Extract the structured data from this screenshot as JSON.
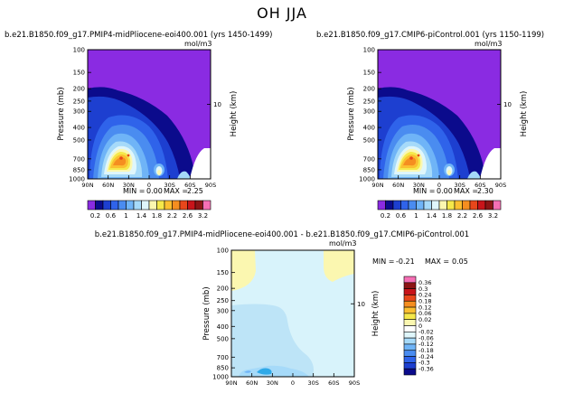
{
  "title": "OH JJA",
  "colors": {
    "purple": "#8a2be2",
    "navy": "#0b0b8c",
    "blue1": "#1d3fd0",
    "blue2": "#2f63ea",
    "blue3": "#4a8cf0",
    "blue4": "#6fb4f7",
    "blue5": "#a6daf9",
    "pale": "#dff6fb",
    "lightyellow": "#fbf7b0",
    "yellow": "#f5e84a",
    "orange1": "#fbbf30",
    "orange2": "#f58e20",
    "red1": "#e8471b",
    "red2": "#c8141a",
    "darkred": "#8c1515",
    "pink": "#f66fb5",
    "diff_lightblue": "#d8f3fb",
    "diff_blue": "#bde4f7",
    "diff_cyan": "#2fa9e8"
  },
  "chart_data": [
    {
      "type": "heatmap",
      "panel": "upper-left",
      "title": "b.e21.B1850.f09_g17.PMIP4-midPliocene-eoi400.001 (yrs 1450-1499)",
      "units": "mol/m3",
      "xlabel": "",
      "ylabel": "Pressure (mb)",
      "ylabel_right": "Height (km)",
      "x_ticks": [
        "90N",
        "60N",
        "30N",
        "0",
        "30S",
        "60S",
        "90S"
      ],
      "y_ticks": [
        "100",
        "150",
        "200",
        "250",
        "300",
        "400",
        "500",
        "700",
        "850",
        "1000"
      ],
      "y_right_ticks": [
        "10"
      ],
      "stats": {
        "min_label": "MIN =",
        "min": "0.00",
        "max_label": "MAX =",
        "max": "2.25"
      }
    },
    {
      "type": "heatmap",
      "panel": "upper-right",
      "title": "b.e21.B1850.f09_g17.CMIP6-piControl.001 (yrs 1150-1199)",
      "units": "mol/m3",
      "xlabel": "",
      "ylabel": "Pressure (mb)",
      "ylabel_right": "Height (km)",
      "x_ticks": [
        "90N",
        "60N",
        "30N",
        "0",
        "30S",
        "60S",
        "90S"
      ],
      "y_ticks": [
        "100",
        "150",
        "200",
        "250",
        "300",
        "400",
        "500",
        "700",
        "850",
        "1000"
      ],
      "y_right_ticks": [
        "10"
      ],
      "stats": {
        "min_label": "MIN =",
        "min": "0.00",
        "max_label": "MAX =",
        "max": "2.30"
      }
    },
    {
      "type": "heatmap",
      "panel": "bottom-difference",
      "title": "b.e21.B1850.f09_g17.PMIP4-midPliocene-eoi400.001 - b.e21.B1850.f09_g17.CMIP6-piControl.001",
      "units": "mol/m3",
      "xlabel": "",
      "ylabel": "Pressure (mb)",
      "ylabel_right": "Height (km)",
      "x_ticks": [
        "90N",
        "60N",
        "30N",
        "0",
        "30S",
        "60S",
        "90S"
      ],
      "y_ticks": [
        "100",
        "150",
        "200",
        "250",
        "300",
        "400",
        "500",
        "700",
        "850",
        "1000"
      ],
      "y_right_ticks": [
        "10"
      ],
      "stats": {
        "min_label": "MIN =",
        "min": "-0.21",
        "max_label": "MAX =",
        "max": "0.05"
      }
    }
  ],
  "colorbar_upper": {
    "labels": [
      "0.2",
      "0.6",
      "1",
      "1.4",
      "1.8",
      "2.2",
      "2.6",
      "3.2"
    ],
    "colors": [
      "#8a2be2",
      "#0b0b8c",
      "#1d3fd0",
      "#2f63ea",
      "#4a8cf0",
      "#6fb4f7",
      "#a6daf9",
      "#dff6fb",
      "#fbf7b0",
      "#f5e84a",
      "#fbbf30",
      "#f58e20",
      "#e8471b",
      "#c8141a",
      "#8c1515",
      "#f66fb5"
    ]
  },
  "colorbar_diff": {
    "labels": [
      "0.36",
      "0.3",
      "0.24",
      "0.18",
      "0.12",
      "0.06",
      "0.02",
      "0",
      "-0.02",
      "-0.06",
      "-0.12",
      "-0.18",
      "-0.24",
      "-0.3",
      "-0.36"
    ],
    "colors": [
      "#f66fb5",
      "#8c1515",
      "#c8141a",
      "#e8471b",
      "#f58e20",
      "#fbbf30",
      "#f5e84a",
      "#fbf7b0",
      "#ffffff",
      "#dff6fb",
      "#a6daf9",
      "#6fb4f7",
      "#4a8cf0",
      "#2f63ea",
      "#1d3fd0",
      "#0b0b8c"
    ]
  }
}
